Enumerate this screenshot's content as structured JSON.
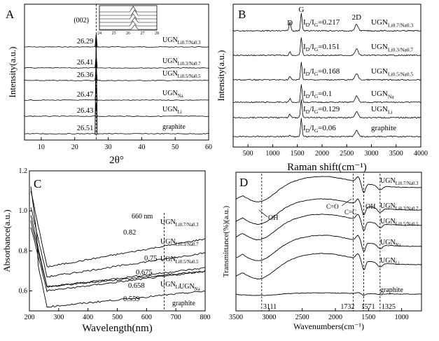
{
  "chart_data": [
    {
      "panel": "A",
      "type": "line",
      "xlabel": "2θ°",
      "ylabel": "Intensity(a.u.)",
      "xlim": [
        5,
        60
      ],
      "xticks": [
        "10",
        "20",
        "30",
        "40",
        "50",
        "60"
      ],
      "peak_label": "(002)",
      "series": [
        {
          "name": "UGNLi0.7/Na0.3",
          "peak": "26.29",
          "sub": "Li0.7/Na0.3"
        },
        {
          "name": "UGNLi0.3/Na0.7",
          "peak": "26.41",
          "sub": "Li0.3/Na0.7"
        },
        {
          "name": "UGNLi0.5/Na0.5",
          "peak": "26.36",
          "sub": "Li0.5/Na0.5"
        },
        {
          "name": "UGNNa",
          "peak": "26.47",
          "sub": "Na"
        },
        {
          "name": "UGNLi",
          "peak": "26.43",
          "sub": "Li"
        },
        {
          "name": "graphite",
          "peak": "26.51",
          "sub": ""
        }
      ],
      "inset": {
        "xlim": [
          24,
          28
        ],
        "xticks": [
          "24",
          "25",
          "26",
          "27",
          "28"
        ]
      }
    },
    {
      "panel": "B",
      "type": "line",
      "xlabel": "Raman shift(cm⁻¹)",
      "ylabel": "Intensity(a.u.)",
      "xlim": [
        200,
        4000
      ],
      "xticks": [
        "500",
        "1000",
        "1500",
        "2000",
        "2500",
        "3000",
        "3500",
        "4000"
      ],
      "band_labels": [
        "D",
        "G",
        "2D"
      ],
      "series": [
        {
          "name": "UGNLi0.7/Na0.3",
          "ratio": "0.217",
          "sub": "Li0.7/Na0.3"
        },
        {
          "name": "UGNLi0.3/Na0.7",
          "ratio": "0.151",
          "sub": "Li0.3/Na0.7"
        },
        {
          "name": "UGNLi0.5/Na0.5",
          "ratio": "0.168",
          "sub": "Li0.5/Na0.5"
        },
        {
          "name": "UGNNa",
          "ratio": "0.1",
          "sub": "Na"
        },
        {
          "name": "UGNLi",
          "ratio": "0.129",
          "sub": "Li"
        },
        {
          "name": "graphite",
          "ratio": "0.06",
          "sub": ""
        }
      ]
    },
    {
      "panel": "C",
      "type": "line",
      "xlabel": "Wavelength(nm)",
      "ylabel": "Absorbance(a.u.)",
      "xlim": [
        200,
        800
      ],
      "ylim": [
        0.5,
        1.2
      ],
      "xticks": [
        "200",
        "300",
        "400",
        "500",
        "600",
        "700",
        "800"
      ],
      "yticks": [
        "0.6",
        "0.8",
        "1.0",
        "1.2"
      ],
      "marker_label": "660 nm",
      "marker_x": 660,
      "series": [
        {
          "name": "UGNLi0.7/Na0.3",
          "value_at_660": "0.82",
          "sub": "Li0.7/Na0.3"
        },
        {
          "name": "UGNLi0.3/Na0.7",
          "value_at_660": "0.75",
          "sub": "Li0.3/Na0.7"
        },
        {
          "name": "UGNLi0.5/Na0.5",
          "value_at_660": "0.675",
          "sub": "Li0.5/Na0.5"
        },
        {
          "name": "UGNLi",
          "value_at_660": "0.658",
          "sub": "Li"
        },
        {
          "name": "UGNNa",
          "value_at_660": "",
          "sub": "Na"
        },
        {
          "name": "graphite",
          "value_at_660": "0.559",
          "sub": ""
        }
      ]
    },
    {
      "panel": "D",
      "type": "line",
      "xlabel": "Wavenumbers(cm⁻¹)",
      "ylabel": "Transmittance(%)(a.u.)",
      "xlim": [
        3500,
        700
      ],
      "xticks": [
        "3500",
        "3000",
        "2500",
        "2000",
        "1500",
        "1000"
      ],
      "band_labels": [
        "OH",
        "C=O",
        "C=C",
        "OH"
      ],
      "marker_values": [
        "3111",
        "1732",
        "1571",
        "1325"
      ],
      "series": [
        {
          "name": "UGNLi0.7/Na0.3",
          "sub": "Li0.7/Na0.3"
        },
        {
          "name": "UGNLi0.3/Na0.7",
          "sub": "Li0.3/Na0.7"
        },
        {
          "name": "UGNLi0.5/Na0.5",
          "sub": "Li0.5/Na0.5"
        },
        {
          "name": "UGNNa",
          "sub": "Na"
        },
        {
          "name": "UGNLi",
          "sub": "Li"
        },
        {
          "name": "graphite",
          "sub": ""
        }
      ]
    }
  ]
}
